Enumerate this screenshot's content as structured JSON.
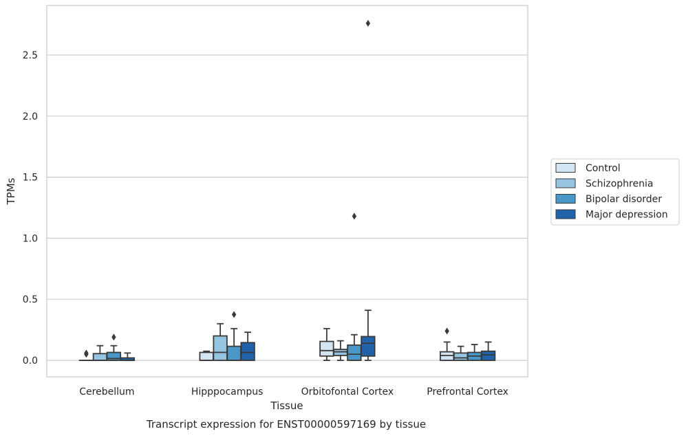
{
  "chart_data": {
    "type": "box",
    "xlabel": "Tissue",
    "ylabel": "TPMs",
    "caption": "Transcript expression for ENST00000597169 by tissue",
    "ylim": [
      -0.13,
      2.9
    ],
    "yticks": [
      "0.0",
      "0.5",
      "1.0",
      "1.5",
      "2.0",
      "2.5"
    ],
    "grid": "horizontal",
    "legend_position": "right",
    "categories": [
      "Cerebellum",
      "Hipppocampus",
      "Orbitofontal Cortex",
      "Prefrontal Cortex"
    ],
    "series": [
      {
        "name": "Control",
        "color": "#d3e4f3",
        "boxes": [
          {
            "whislo": 0.0,
            "q1": 0.0,
            "med": 0.0,
            "q3": 0.0,
            "whishi": 0.0,
            "fliers": [
              0.05,
              0.06
            ]
          },
          {
            "whislo": 0.0,
            "q1": 0.0,
            "med": 0.0,
            "q3": 0.065,
            "whishi": 0.075,
            "fliers": []
          },
          {
            "whislo": 0.0,
            "q1": 0.035,
            "med": 0.08,
            "q3": 0.155,
            "whishi": 0.26,
            "fliers": []
          },
          {
            "whislo": 0.0,
            "q1": 0.0,
            "med": 0.04,
            "q3": 0.07,
            "whishi": 0.15,
            "fliers": [
              0.24
            ]
          }
        ]
      },
      {
        "name": "Schizophrenia",
        "color": "#94c4df",
        "boxes": [
          {
            "whislo": 0.0,
            "q1": 0.0,
            "med": 0.0,
            "q3": 0.055,
            "whishi": 0.12,
            "fliers": []
          },
          {
            "whislo": 0.0,
            "q1": 0.0,
            "med": 0.065,
            "q3": 0.2,
            "whishi": 0.3,
            "fliers": []
          },
          {
            "whislo": 0.0,
            "q1": 0.04,
            "med": 0.07,
            "q3": 0.09,
            "whishi": 0.16,
            "fliers": []
          },
          {
            "whislo": 0.0,
            "q1": 0.0,
            "med": 0.02,
            "q3": 0.06,
            "whishi": 0.115,
            "fliers": []
          }
        ]
      },
      {
        "name": "Bipolar disorder",
        "color": "#4a98c9",
        "boxes": [
          {
            "whislo": 0.0,
            "q1": 0.0,
            "med": 0.015,
            "q3": 0.065,
            "whishi": 0.12,
            "fliers": [
              0.19
            ]
          },
          {
            "whislo": 0.0,
            "q1": 0.0,
            "med": 0.0,
            "q3": 0.115,
            "whishi": 0.26,
            "fliers": [
              0.375
            ]
          },
          {
            "whislo": 0.0,
            "q1": 0.0,
            "med": 0.05,
            "q3": 0.125,
            "whishi": 0.21,
            "fliers": [
              1.18
            ]
          },
          {
            "whislo": 0.0,
            "q1": 0.0,
            "med": 0.035,
            "q3": 0.065,
            "whishi": 0.13,
            "fliers": []
          }
        ]
      },
      {
        "name": "Major depression",
        "color": "#2163aa",
        "boxes": [
          {
            "whislo": 0.0,
            "q1": 0.0,
            "med": 0.0,
            "q3": 0.02,
            "whishi": 0.06,
            "fliers": []
          },
          {
            "whislo": 0.0,
            "q1": 0.0,
            "med": 0.065,
            "q3": 0.145,
            "whishi": 0.23,
            "fliers": []
          },
          {
            "whislo": 0.0,
            "q1": 0.035,
            "med": 0.14,
            "q3": 0.195,
            "whishi": 0.41,
            "fliers": [
              2.76
            ]
          },
          {
            "whislo": 0.0,
            "q1": 0.0,
            "med": 0.045,
            "q3": 0.075,
            "whishi": 0.15,
            "fliers": []
          }
        ]
      }
    ]
  }
}
